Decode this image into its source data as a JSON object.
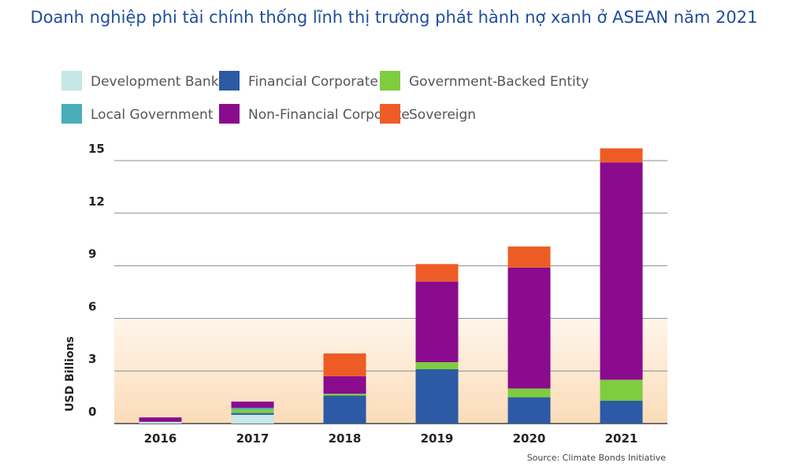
{
  "page_title": "Doanh nghiệp phi tài chính thống lĩnh thị trường phát hành nợ xanh ở ASEAN năm 2021",
  "chart_data": {
    "type": "bar",
    "stacked": true,
    "title": "",
    "xlabel": "",
    "ylabel": "USD Billions",
    "ylim": [
      0,
      15
    ],
    "yticks": [
      0,
      3,
      6,
      9,
      12,
      15
    ],
    "grid": true,
    "legend_position": "top",
    "source": "Source: Climate Bonds Initiative",
    "categories": [
      "2016",
      "2017",
      "2018",
      "2019",
      "2020",
      "2021"
    ],
    "series": [
      {
        "name": "Development Bank",
        "color": "#c6e6e7",
        "values": [
          0.1,
          0.5,
          0,
          0,
          0,
          0
        ]
      },
      {
        "name": "Financial Corporate",
        "color": "#2d5aa4",
        "values": [
          0,
          0.1,
          1.6,
          3.1,
          1.5,
          1.3
        ]
      },
      {
        "name": "Government-Backed Entity",
        "color": "#7fcc3f",
        "values": [
          0,
          0.2,
          0.1,
          0.4,
          0.5,
          1.2
        ]
      },
      {
        "name": "Local Government",
        "color": "#4aadb8",
        "values": [
          0,
          0.1,
          0,
          0,
          0,
          0
        ]
      },
      {
        "name": "Non-Financial Corporate",
        "color": "#8a0b8e",
        "values": [
          0.25,
          0.35,
          1.0,
          4.6,
          6.9,
          12.4
        ]
      },
      {
        "name": "Sovereign",
        "color": "#ee5c26",
        "values": [
          0,
          0,
          1.3,
          1.0,
          1.2,
          0.8
        ]
      }
    ]
  }
}
